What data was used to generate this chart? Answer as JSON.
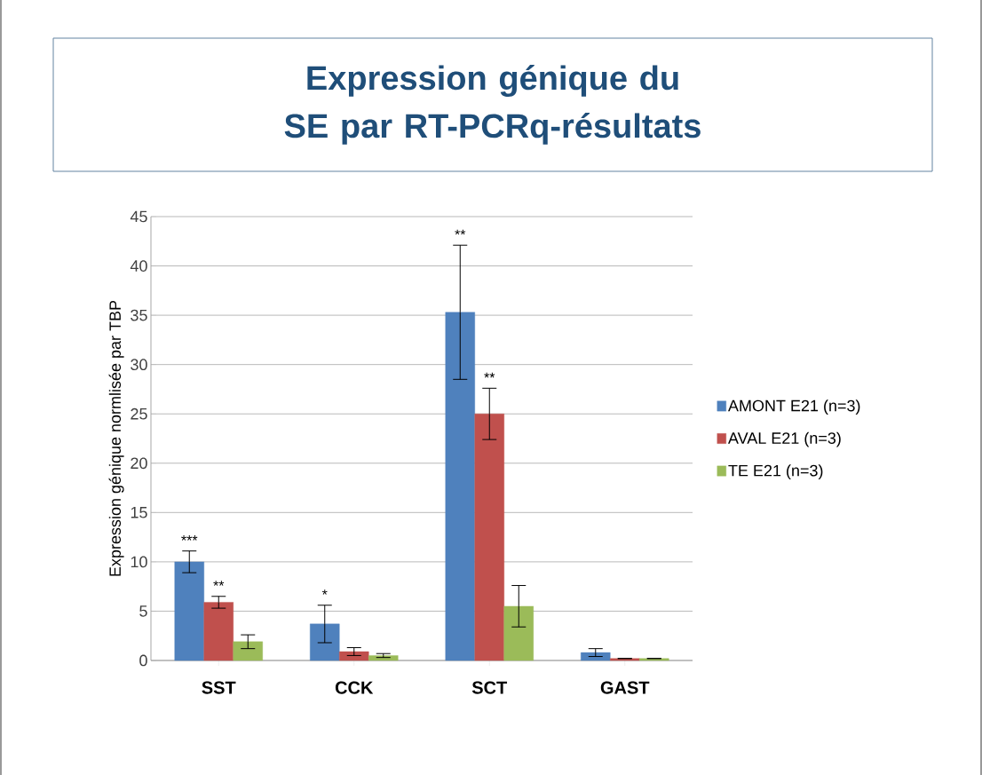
{
  "chart_data": {
    "type": "bar",
    "title": "Expression génique du SE par RT-PCRq-résultats",
    "ylabel": "Expression génique normlisée par TBP",
    "categories": [
      "SST",
      "CCK",
      "SCT",
      "GAST"
    ],
    "series": [
      {
        "name": "AMONT E21 (n=3)",
        "color": "#4f81bd",
        "values": [
          10,
          3.7,
          35.3,
          0.8
        ],
        "errors": [
          1.1,
          1.9,
          6.8,
          0.4
        ]
      },
      {
        "name": "AVAL E21 (n=3)",
        "color": "#c0504d",
        "values": [
          5.9,
          0.9,
          25,
          0.2
        ],
        "errors": [
          0.6,
          0.4,
          2.6,
          null
        ]
      },
      {
        "name": "TE E21 (n=3)",
        "color": "#9bbb59",
        "values": [
          1.9,
          0.5,
          5.5,
          0.2
        ],
        "errors": [
          0.7,
          0.2,
          2.1,
          null
        ]
      }
    ],
    "ylim": [
      0,
      45
    ],
    "yticks": [
      0,
      5,
      10,
      15,
      20,
      25,
      30,
      35,
      40,
      45
    ],
    "grid": "y",
    "legend": "right",
    "annotations": [
      "***",
      "**",
      "*",
      "**",
      "**"
    ]
  }
}
